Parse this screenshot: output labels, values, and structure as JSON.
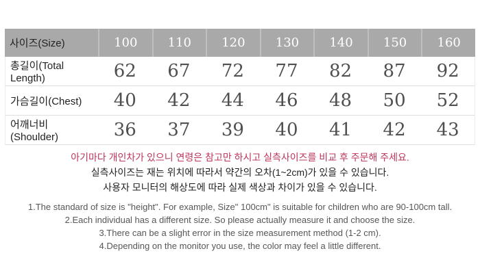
{
  "size_table": {
    "header": {
      "label": "사이즈(Size)",
      "sizes": [
        "100",
        "110",
        "120",
        "130",
        "140",
        "150",
        "160"
      ]
    },
    "rows": [
      {
        "label": "총길이(Total Length)",
        "values": [
          "62",
          "67",
          "72",
          "77",
          "82",
          "87",
          "92"
        ]
      },
      {
        "label": "가슴길이(Chest)",
        "values": [
          "40",
          "42",
          "44",
          "46",
          "48",
          "50",
          "52"
        ]
      },
      {
        "label": "어깨너비 (Shoulder)",
        "values": [
          "36",
          "37",
          "39",
          "40",
          "41",
          "42",
          "43"
        ]
      }
    ]
  },
  "notice_ko": {
    "highlight": "아기마다 개인차가 있으니 연령은 참고만 하시고 실측사이즈를 비교 후 주문해 주세요.",
    "line2": "실측사이즈는 재는 위치에 따라서 약간의  오차(1~2cm)가 있을 수 있습니다.",
    "line3": "사용자 모니터의 해상도에 따라 실제 색상과 차이가 있을 수 있습니다."
  },
  "notice_en": {
    "line1": "1.The standard of size is \"height\". For example,  Size\" 100cm\" is suitable for children who are 90-100cm tall.",
    "line2": "2.Each individual has a different size. So please actually measure it and choose the size.",
    "line3": "3.There can be a slight error in the size measurement method (1-2 cm).",
    "line4": "4.Depending on the monitor you use, the color may feel a little different."
  },
  "colors": {
    "header_bg": "#a9a9a9",
    "header_text": "#ffffff",
    "highlight_red": "#bc3458"
  }
}
